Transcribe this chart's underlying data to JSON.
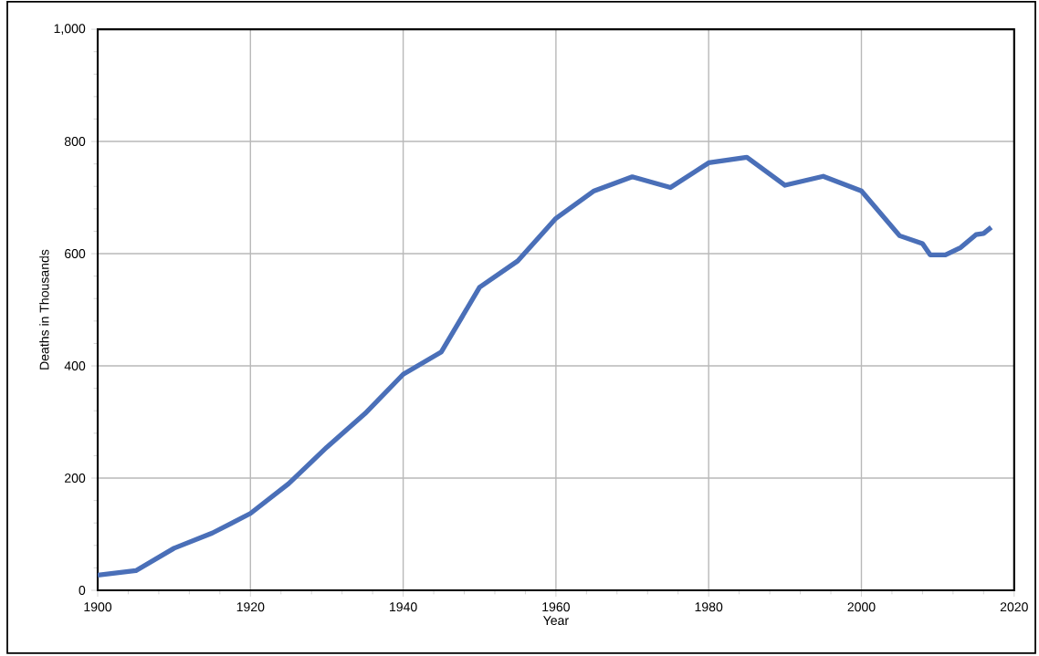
{
  "chart_data": {
    "type": "line",
    "xlabel": "Year",
    "ylabel": "Deaths in Thousands",
    "x": [
      1900,
      1905,
      1910,
      1915,
      1920,
      1925,
      1930,
      1935,
      1940,
      1945,
      1950,
      1955,
      1960,
      1965,
      1970,
      1975,
      1980,
      1985,
      1990,
      1995,
      2000,
      2005,
      2008,
      2009,
      2011,
      2013,
      2015,
      2016,
      2017
    ],
    "series": [
      {
        "color": "#4a6fb8",
        "values": [
          27,
          35,
          75,
          102,
          137,
          190,
          255,
          315,
          385,
          425,
          540,
          587,
          663,
          712,
          737,
          718,
          762,
          772,
          722,
          738,
          712,
          632,
          618,
          598,
          598,
          611,
          634,
          636,
          647
        ]
      }
    ],
    "xlim": [
      1900,
      2020
    ],
    "xticks": [
      1900,
      1920,
      1940,
      1960,
      1980,
      2000,
      2020
    ],
    "ylim": [
      0,
      1000
    ],
    "yticks": [
      0,
      200,
      400,
      600,
      800,
      {
        "value": 1000,
        "label": "1,000"
      }
    ],
    "grid": true,
    "marker": "none",
    "line_style": "solid"
  }
}
